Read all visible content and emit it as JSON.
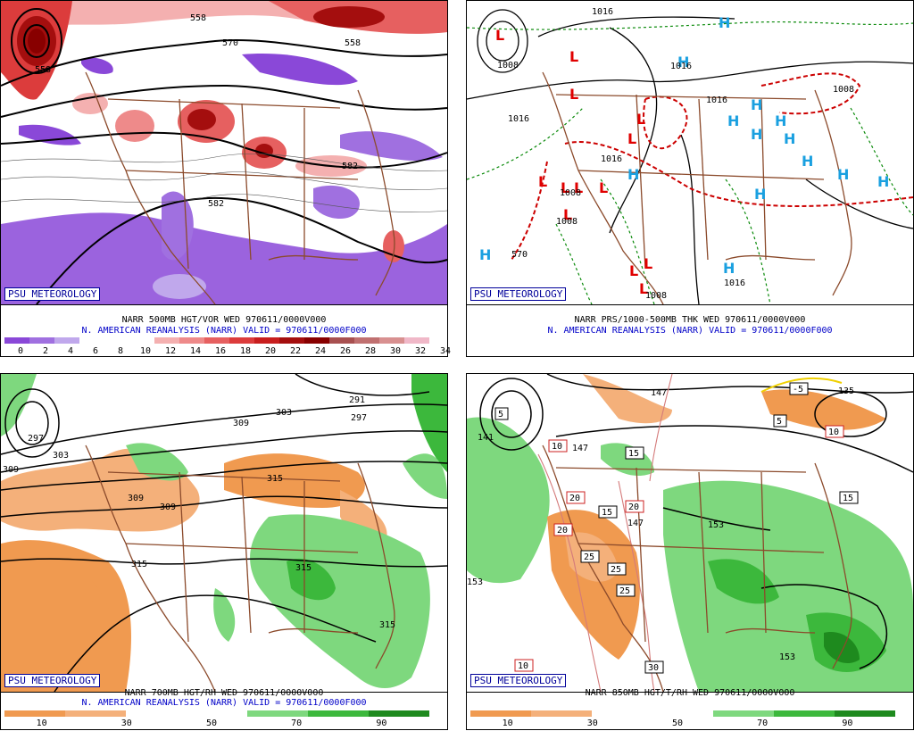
{
  "panels": {
    "tl": {
      "badge": "PSU METEOROLOGY",
      "line1": "NARR 500MB HGT/VOR WED 970611/0000V000",
      "line2": "N. AMERICAN REANALYSIS (NARR) VALID = 970611/0000F000",
      "colorbar": {
        "ticks": [
          "0",
          "2",
          "4",
          "6",
          "8",
          "10",
          "12",
          "14",
          "16",
          "18",
          "20",
          "22",
          "24",
          "26",
          "28",
          "30",
          "32",
          "34"
        ],
        "colors": [
          "#8a48d8",
          "#a070e0",
          "#c0a8ec",
          "#ffffff",
          "#ffffff",
          "#ffffff",
          "#f4b0b0",
          "#ee8a8a",
          "#e66060",
          "#dc3c3c",
          "#c81e1e",
          "#a40e0e",
          "#880000",
          "#a85050",
          "#c07070",
          "#d89090",
          "#f0b8c8"
        ]
      },
      "contour_labels": [
        "558",
        "570",
        "558",
        "582",
        "582",
        "558"
      ]
    },
    "tr": {
      "badge": "PSU METEOROLOGY",
      "line1": "NARR PRS/1000-500MB THK WED 970611/0000V000",
      "line2": "N. AMERICAN REANALYSIS (NARR) VALID = 970611/0000F000",
      "contour_labels": [
        "1016",
        "1008",
        "1016",
        "1016",
        "1008",
        "1016",
        "1016",
        "1008",
        "1008",
        "570",
        "1016",
        "1008"
      ],
      "pressure_centers_low": "L",
      "pressure_centers_high": "H"
    },
    "bl": {
      "badge": "PSU METEOROLOGY",
      "line1": "NARR 700MB HGT/RH WED 970611/0000V000",
      "line2": "N. AMERICAN REANALYSIS (NARR) VALID = 970611/0000F000",
      "colorbar": {
        "ticks": [
          "10",
          "30",
          "50",
          "70",
          "90"
        ],
        "colors": [
          "#f09a50",
          "#f4b07a",
          "#ffffff",
          "#ffffff",
          "#7ed87e",
          "#3cb83c",
          "#1e8a1e"
        ]
      },
      "contour_labels": [
        "297",
        "303",
        "309",
        "309",
        "291",
        "297",
        "303",
        "309",
        "309",
        "315",
        "315",
        "315",
        "315"
      ]
    },
    "br": {
      "badge": "PSU METEOROLOGY",
      "line1": "NARR 850MB HGT/T/RH WED 970611/0000V000",
      "colorbar": {
        "ticks": [
          "10",
          "30",
          "50",
          "70",
          "90"
        ],
        "colors": [
          "#f09a50",
          "#f4b07a",
          "#ffffff",
          "#ffffff",
          "#7ed87e",
          "#3cb83c",
          "#1e8a1e"
        ]
      },
      "contour_labels": [
        "141",
        "147",
        "147",
        "135",
        "153",
        "153",
        "153",
        "147"
      ],
      "temp_boxes": [
        "5",
        "5",
        "-5",
        "10",
        "10",
        "15",
        "15",
        "15",
        "20",
        "20",
        "20",
        "25",
        "25",
        "25",
        "30",
        "10"
      ]
    }
  }
}
